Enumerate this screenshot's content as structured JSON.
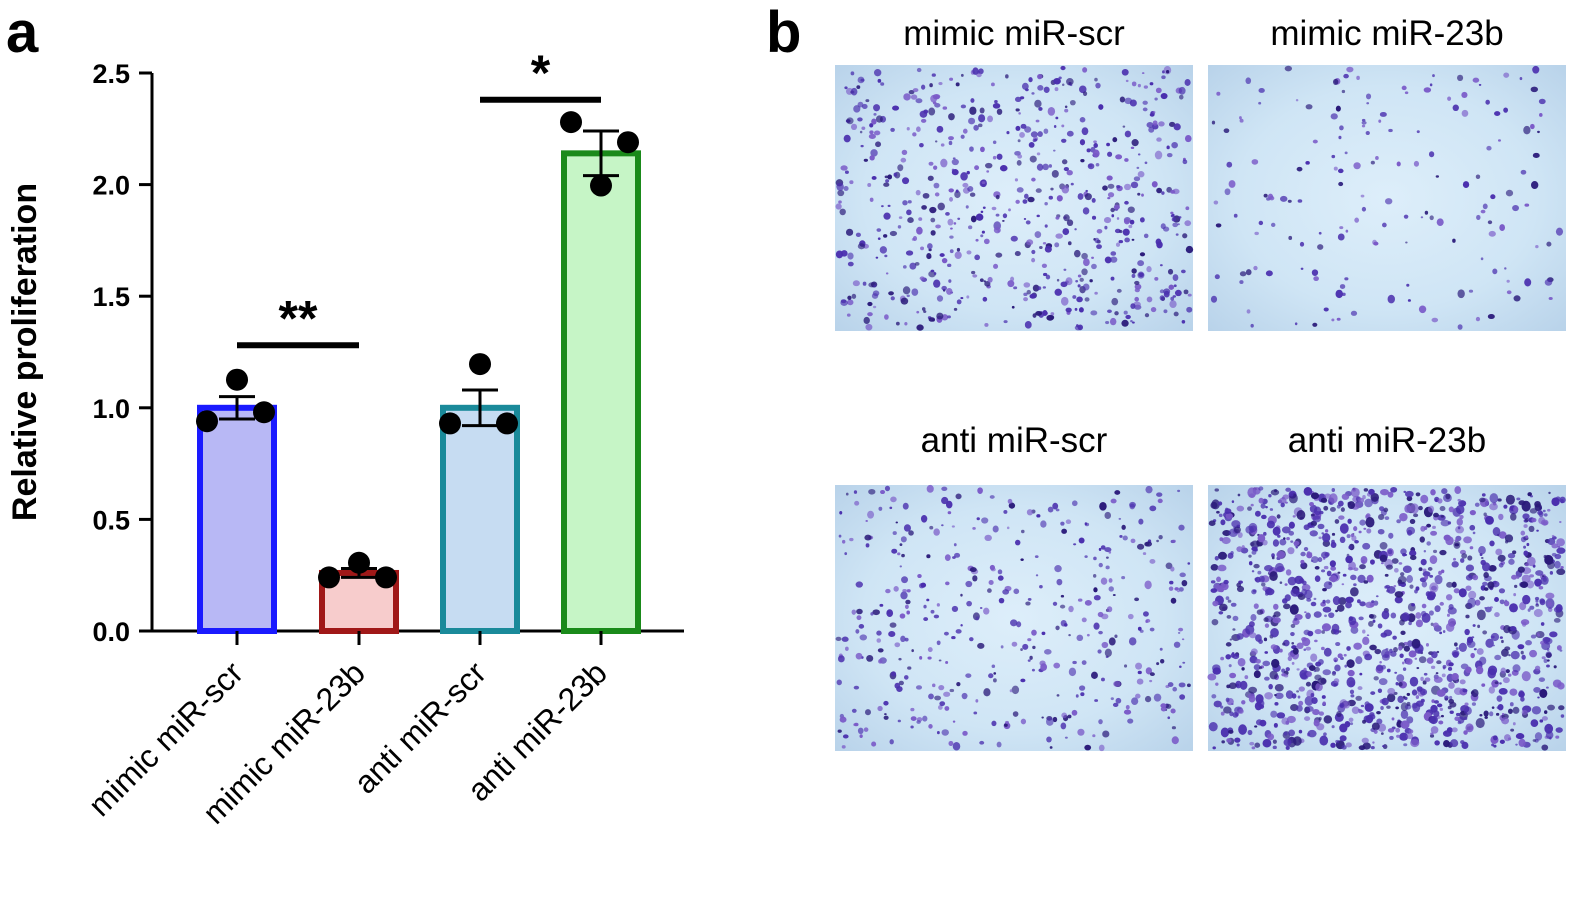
{
  "panel_a": {
    "letter": "a"
  },
  "panel_b": {
    "letter": "b"
  },
  "chart_data": {
    "type": "bar",
    "title": "",
    "ylabel": "Relative proliferation",
    "xlabel": "",
    "ylim": [
      0,
      2.5
    ],
    "yticks": [
      "0.0",
      "0.5",
      "1.0",
      "1.5",
      "2.0",
      "2.5"
    ],
    "categories": [
      "mimic miR-scr",
      "mimic miR-23b",
      "anti miR-scr",
      "anti miR-23b"
    ],
    "values": [
      1.0,
      0.26,
      1.0,
      2.14
    ],
    "errors": [
      0.05,
      0.02,
      0.08,
      0.1
    ],
    "points": [
      [
        0.94,
        1.09,
        0.98
      ],
      [
        0.24,
        0.27,
        0.24
      ],
      [
        0.93,
        1.16,
        0.93
      ],
      [
        2.28,
        1.96,
        2.19
      ]
    ],
    "edge_colors": [
      "#1a1aff",
      "#a01818",
      "#1a8a9a",
      "#1a8a1a"
    ],
    "fill_colors": [
      "#b8b8f5",
      "#f7cccc",
      "#c6dcf2",
      "#c6f5c6"
    ],
    "significance": [
      {
        "label": "**",
        "from": 0,
        "to": 1,
        "y": 1.28
      },
      {
        "label": "*",
        "from": 2,
        "to": 3,
        "y": 2.38
      }
    ]
  },
  "micrographs": [
    {
      "title": "mimic miR-scr",
      "density": "high"
    },
    {
      "title": "mimic miR-23b",
      "density": "low"
    },
    {
      "title": "anti miR-scr",
      "density": "medium"
    },
    {
      "title": "anti miR-23b",
      "density": "very-high"
    }
  ],
  "colors": {
    "stain": "#4a2fae",
    "background": "#cfe5f5"
  }
}
